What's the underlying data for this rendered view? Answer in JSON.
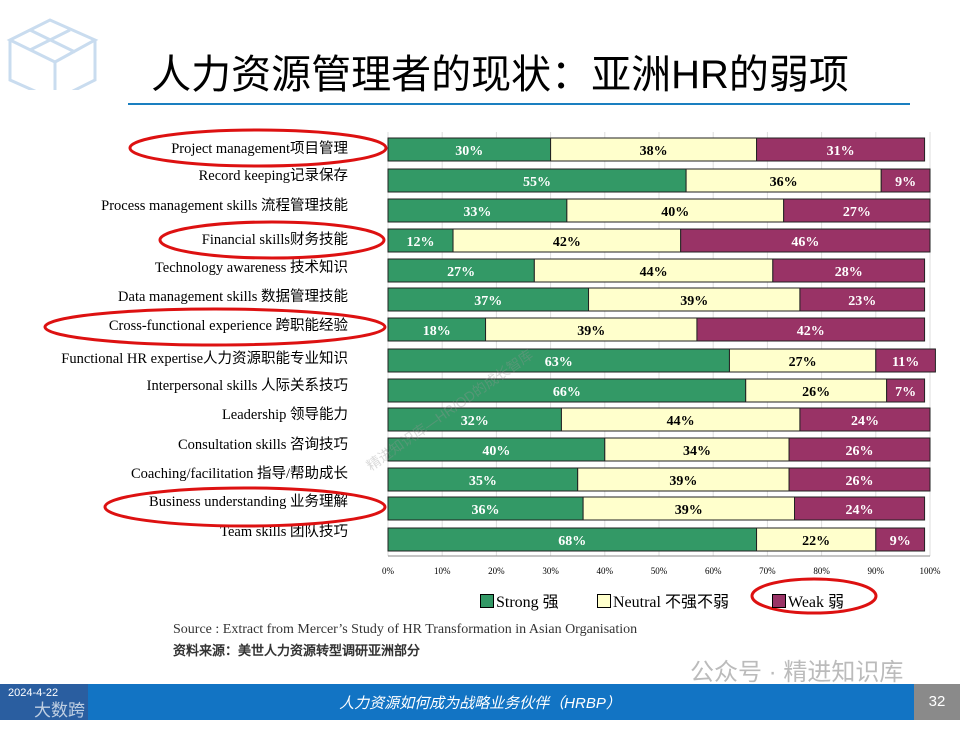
{
  "title": "人力资源管理者的现状：亚洲HR的弱项",
  "chart_data": {
    "type": "bar",
    "orientation": "horizontal-stacked-100",
    "categories": [
      "Project management项目管理",
      "Record keeping记录保存",
      "Process management skills 流程管理技能",
      "Financial skills财务技能",
      "Technology awareness 技术知识",
      "Data management skills 数据管理技能",
      "Cross-functional experience 跨职能经验",
      "Functional HR expertise人力资源职能专业知识",
      "Interpersonal skills 人际关系技巧",
      "Leadership 领导能力",
      "Consultation skills 咨询技巧",
      "Coaching/facilitation 指导/帮助成长",
      "Business understanding 业务理解",
      "Team skills 团队技巧"
    ],
    "series": [
      {
        "name": "Strong 强",
        "color": "#339966",
        "values": [
          30,
          55,
          33,
          12,
          27,
          37,
          18,
          63,
          66,
          32,
          40,
          35,
          36,
          68
        ]
      },
      {
        "name": "Neutral 不强不弱",
        "color": "#ffffcc",
        "values": [
          38,
          36,
          40,
          42,
          44,
          39,
          39,
          27,
          26,
          44,
          34,
          39,
          39,
          22
        ]
      },
      {
        "name": "Weak 弱",
        "color": "#993366",
        "values": [
          31,
          9,
          27,
          46,
          28,
          23,
          42,
          11,
          7,
          24,
          26,
          26,
          24,
          9
        ]
      }
    ],
    "xlim": [
      0,
      100
    ],
    "xticks": [
      "0%",
      "10%",
      "20%",
      "30%",
      "40%",
      "50%",
      "60%",
      "70%",
      "80%",
      "90%",
      "100%"
    ],
    "legend": "bottom",
    "grid": true,
    "highlighted": [
      "Project management项目管理",
      "Financial skills财务技能",
      "Cross-functional experience 跨职能经验",
      "Business understanding 业务理解",
      "Weak 弱"
    ]
  },
  "source": "Source : Extract from Mercer’s Study of HR Transformation in Asian Organisation",
  "source_cn": "资料来源：美世人力资源转型调研亚洲部分",
  "watermark": "公众号 · 精进知识库",
  "watermark_diag": "精进知识库—HR/OD的成长智库",
  "footer": {
    "left": "2024-4-22",
    "left_logo": "大数跨境",
    "center": "人力资源如何成为战略业务伙伴（HRBP）",
    "page": "32"
  }
}
